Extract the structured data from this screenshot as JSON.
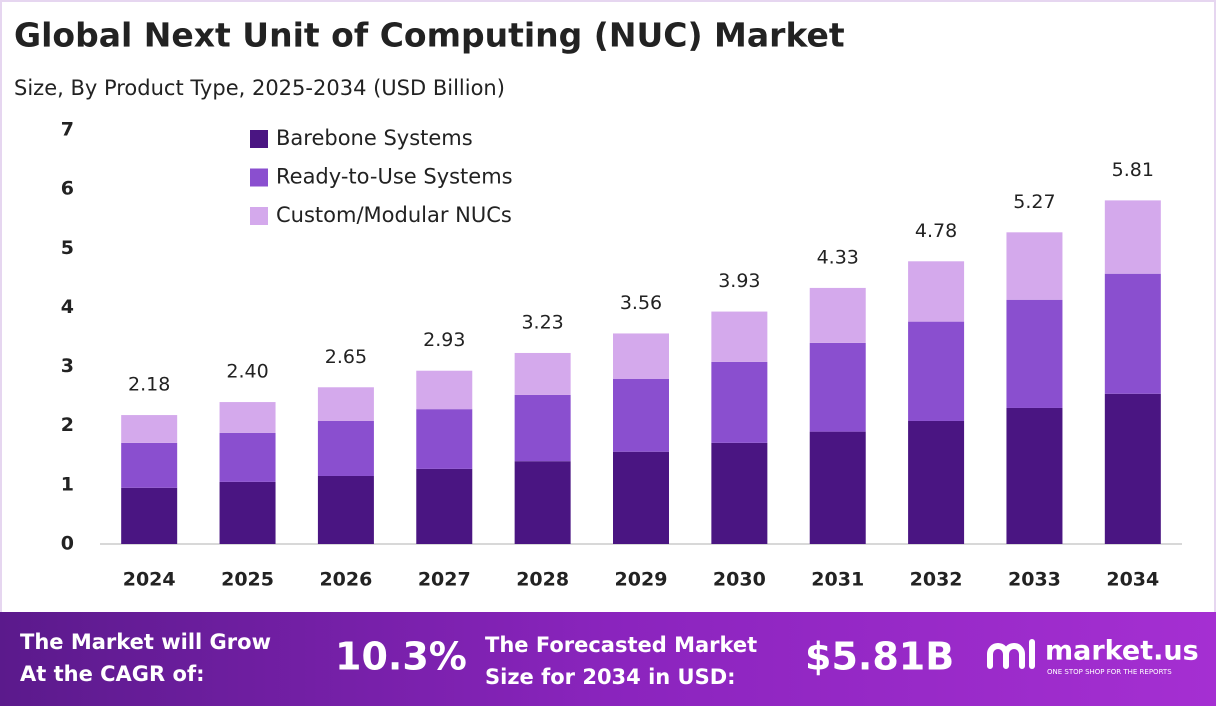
{
  "chart_data": {
    "type": "stacked_bar",
    "title": "Global Next Unit of Computing (NUC) Market",
    "subtitle": "Size, By Product Type, 2025-2034 (USD Billion)",
    "categories": [
      "2024",
      "2025",
      "2026",
      "2027",
      "2028",
      "2029",
      "2030",
      "2031",
      "2032",
      "2033",
      "2034"
    ],
    "series": [
      {
        "name": "Barebone Systems",
        "color": "#4a1582",
        "values": [
          0.95,
          1.05,
          1.15,
          1.27,
          1.4,
          1.56,
          1.71,
          1.9,
          2.08,
          2.3,
          2.54
        ]
      },
      {
        "name": "Ready-to-Use Systems",
        "color": "#8a4fcf",
        "values": [
          0.76,
          0.83,
          0.93,
          1.01,
          1.12,
          1.23,
          1.37,
          1.5,
          1.68,
          1.83,
          2.03
        ]
      },
      {
        "name": "Custom/Modular NUCs",
        "color": "#d4a9ec",
        "values": [
          0.47,
          0.52,
          0.57,
          0.65,
          0.71,
          0.77,
          0.85,
          0.93,
          1.02,
          1.14,
          1.24
        ]
      }
    ],
    "totals": [
      2.18,
      2.4,
      2.65,
      2.93,
      3.23,
      3.56,
      3.93,
      4.33,
      4.78,
      5.27,
      5.81
    ],
    "total_labels": [
      "2.18",
      "2.40",
      "2.65",
      "2.93",
      "3.23",
      "3.56",
      "3.93",
      "4.33",
      "4.78",
      "5.27",
      "5.81"
    ],
    "ylim": [
      0,
      7
    ],
    "yticks": [
      0,
      1,
      2,
      3,
      4,
      5,
      6,
      7
    ],
    "grid": false,
    "legend": "top-left"
  },
  "footer": {
    "cagr_label": [
      "The Market will Grow",
      "At the CAGR of:"
    ],
    "cagr": "10.3%",
    "forecast_label": [
      "The Forecasted Market",
      "Size for 2034 in USD:"
    ],
    "forecast_value": "$5.81B",
    "logo": "market.us",
    "tagline": "ONE STOP SHOP FOR THE REPORTS"
  }
}
